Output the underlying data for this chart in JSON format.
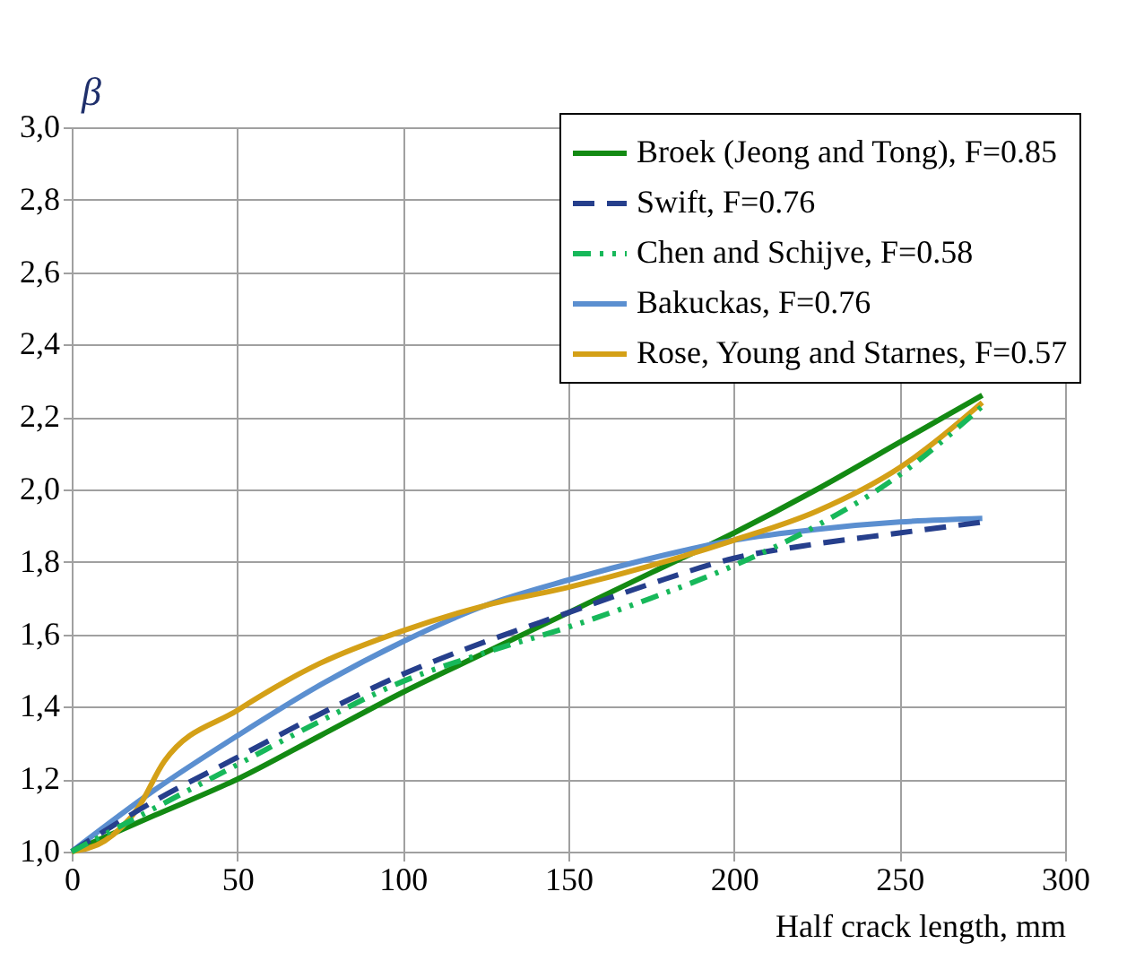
{
  "chart_data": {
    "type": "line",
    "xlabel": "Half crack length, mm",
    "ylabel": "β",
    "xlim": [
      0,
      300
    ],
    "xticks": [
      0,
      50,
      100,
      150,
      200,
      250,
      300
    ],
    "ylim": [
      1.0,
      3.0
    ],
    "yticks": [
      {
        "value": 1.0,
        "label": "1,0"
      },
      {
        "value": 1.2,
        "label": "1,2"
      },
      {
        "value": 1.4,
        "label": "1,4"
      },
      {
        "value": 1.6,
        "label": "1,6"
      },
      {
        "value": 1.8,
        "label": "1,8"
      },
      {
        "value": 2.0,
        "label": "2,0"
      },
      {
        "value": 2.2,
        "label": "2,2"
      },
      {
        "value": 2.4,
        "label": "2,4"
      },
      {
        "value": 2.6,
        "label": "2,6"
      },
      {
        "value": 2.8,
        "label": "2,8"
      },
      {
        "value": 3.0,
        "label": "3,0"
      }
    ],
    "grid": true,
    "legend": "top right",
    "marker": "none",
    "series": [
      {
        "name": "Broek (Jeong and Tong), F=0.85",
        "color": "#138a13",
        "line_style": "solid",
        "x": [
          0,
          25,
          50,
          75,
          100,
          125,
          150,
          175,
          200,
          225,
          250,
          275
        ],
        "values": [
          1.0,
          1.1,
          1.2,
          1.32,
          1.44,
          1.55,
          1.66,
          1.77,
          1.88,
          2.0,
          2.13,
          2.26
        ]
      },
      {
        "name": "Swift, F=0.76",
        "color": "#263f8c",
        "line_style": "dashed",
        "x": [
          0,
          25,
          50,
          75,
          100,
          125,
          150,
          175,
          200,
          225,
          250,
          275
        ],
        "values": [
          1.0,
          1.14,
          1.26,
          1.38,
          1.49,
          1.58,
          1.66,
          1.74,
          1.81,
          1.85,
          1.88,
          1.91
        ]
      },
      {
        "name": "Chen and Schijve, F=0.58",
        "color": "#17b85a",
        "line_style": "dotted",
        "x": [
          0,
          25,
          50,
          75,
          100,
          125,
          150,
          175,
          200,
          225,
          250,
          275
        ],
        "values": [
          1.0,
          1.12,
          1.24,
          1.36,
          1.47,
          1.55,
          1.62,
          1.7,
          1.79,
          1.9,
          2.04,
          2.23
        ]
      },
      {
        "name": "Bakuckas, F=0.76",
        "color": "#5b8fd0",
        "line_style": "solid",
        "x": [
          0,
          25,
          50,
          75,
          100,
          125,
          150,
          175,
          200,
          225,
          250,
          275
        ],
        "values": [
          1.0,
          1.17,
          1.32,
          1.46,
          1.58,
          1.68,
          1.75,
          1.81,
          1.86,
          1.89,
          1.91,
          1.92
        ]
      },
      {
        "name": "Rose, Young and Starnes, F=0.57",
        "color": "#d4a017",
        "line_style": "solid",
        "x": [
          0,
          10,
          20,
          28,
          50,
          75,
          100,
          125,
          150,
          175,
          200,
          225,
          250,
          275
        ],
        "values": [
          1.0,
          1.03,
          1.12,
          1.25,
          1.39,
          1.52,
          1.61,
          1.68,
          1.73,
          1.79,
          1.86,
          1.94,
          2.06,
          2.24
        ]
      }
    ]
  }
}
